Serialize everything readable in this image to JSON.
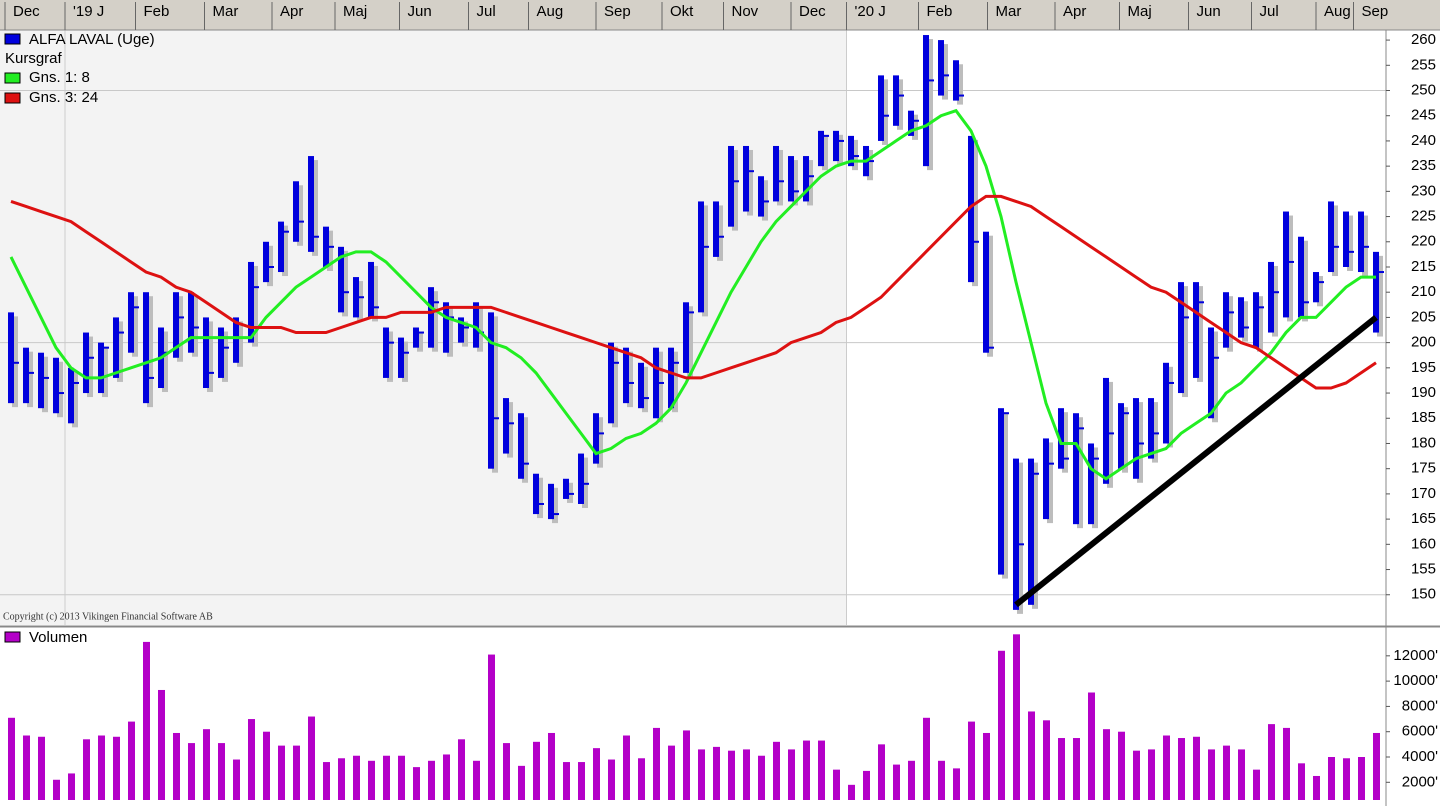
{
  "copyright": "Copyright (c) 2013 Vikingen Financial Software AB",
  "x_axis": {
    "labels": [
      "Dec",
      "'19 J",
      "Feb",
      "Mar",
      "Apr",
      "Maj",
      "Jun",
      "Jul",
      "Aug",
      "Sep",
      "Okt",
      "Nov",
      "Dec",
      "'20 J",
      "Feb",
      "Mar",
      "Apr",
      "Maj",
      "Jun",
      "Jul",
      "Aug",
      "Sep"
    ],
    "positions": [
      -0.4,
      3.6,
      8.3,
      12.9,
      17.4,
      21.6,
      25.9,
      30.5,
      34.5,
      39,
      43.4,
      47.5,
      52,
      55.7,
      60.5,
      65.1,
      69.6,
      73.9,
      78.5,
      82.7,
      87,
      89.5
    ]
  },
  "chart_data": [
    {
      "type": "ohlc",
      "name": "ALFA LAVAL (Uge)",
      "subtitle": "Kursgraf",
      "color": "#0000dd",
      "high": [
        206,
        199,
        198,
        197,
        195,
        202,
        200,
        205,
        210,
        210,
        203,
        210,
        210,
        205,
        203,
        205,
        216,
        220,
        224,
        232,
        237,
        223,
        219,
        213,
        216,
        203,
        201,
        203,
        211,
        208,
        205,
        208,
        206,
        189,
        186,
        174,
        172,
        173,
        178,
        186,
        200,
        199,
        196,
        199,
        199,
        208,
        228,
        228,
        239,
        239,
        233,
        239,
        237,
        237,
        242,
        242,
        241,
        239,
        253,
        253,
        246,
        261,
        260,
        256,
        241,
        222,
        187,
        177,
        177,
        181,
        187,
        186,
        180,
        193,
        188,
        189,
        189,
        196,
        212,
        212,
        203,
        210,
        209,
        210,
        216,
        226,
        221,
        214,
        228,
        226,
        226,
        218
      ],
      "low": [
        188,
        188,
        187,
        186,
        184,
        190,
        190,
        193,
        198,
        188,
        191,
        197,
        198,
        191,
        193,
        196,
        200,
        212,
        214,
        220,
        218,
        215,
        206,
        205,
        205,
        193,
        193,
        199,
        199,
        198,
        200,
        199,
        175,
        178,
        173,
        166,
        165,
        169,
        168,
        176,
        184,
        188,
        187,
        185,
        187,
        194,
        206,
        217,
        223,
        226,
        225,
        228,
        228,
        228,
        235,
        236,
        235,
        233,
        240,
        243,
        241,
        235,
        249,
        248,
        212,
        198,
        154,
        147,
        148,
        165,
        175,
        164,
        164,
        172,
        175,
        173,
        177,
        180,
        190,
        193,
        185,
        199,
        201,
        199,
        202,
        205,
        205,
        208,
        214,
        215,
        214,
        202
      ],
      "close": [
        196,
        194,
        193,
        190,
        192,
        197,
        199,
        202,
        207,
        193,
        198,
        205,
        203,
        194,
        199,
        201,
        211,
        215,
        222,
        224,
        221,
        219,
        210,
        209,
        207,
        200,
        198,
        202,
        208,
        205,
        203,
        202,
        185,
        184,
        176,
        168,
        166,
        170,
        172,
        182,
        196,
        192,
        189,
        192,
        196,
        206,
        219,
        221,
        232,
        234,
        228,
        232,
        230,
        233,
        241,
        240,
        237,
        236,
        245,
        249,
        244,
        252,
        253,
        249,
        220,
        199,
        186,
        160,
        174,
        176,
        177,
        183,
        177,
        182,
        186,
        180,
        182,
        192,
        205,
        208,
        197,
        206,
        203,
        207,
        210,
        216,
        208,
        212,
        219,
        218,
        219,
        214
      ],
      "series": [
        {
          "name": "Gns. 1: 8",
          "color": "#22ee22",
          "values": [
            217,
            211,
            205,
            199,
            195,
            193,
            193,
            194,
            195,
            196,
            197,
            199,
            201,
            201,
            201,
            201,
            201,
            205,
            208,
            211,
            213,
            215,
            217,
            218,
            218,
            216,
            213,
            210,
            207,
            205,
            204,
            203,
            200,
            199,
            197,
            194,
            190,
            186,
            182,
            178,
            179,
            181,
            182,
            184,
            187,
            192,
            198,
            204,
            210,
            215,
            220,
            224,
            227,
            230,
            233,
            235,
            236,
            236,
            238,
            240,
            242,
            243,
            245,
            246,
            242,
            235,
            225,
            212,
            200,
            188,
            180,
            180,
            175,
            173,
            175,
            177,
            178,
            179,
            182,
            184,
            186,
            190,
            192,
            195,
            198,
            202,
            205,
            205,
            208,
            211,
            213,
            213
          ]
        },
        {
          "name": "Gns. 3: 24",
          "color": "#dd1111",
          "values": [
            228,
            227,
            226,
            225,
            224,
            222,
            220,
            218,
            216,
            214,
            213,
            211,
            210,
            208,
            206,
            204,
            203,
            203,
            203,
            202,
            202,
            202,
            203,
            204,
            205,
            205,
            206,
            206,
            206,
            207,
            207,
            207,
            207,
            206,
            205,
            204,
            203,
            202,
            201,
            200,
            199,
            198,
            197,
            195,
            194,
            193,
            193,
            194,
            195,
            196,
            197,
            198,
            200,
            201,
            202,
            204,
            205,
            207,
            209,
            212,
            215,
            218,
            221,
            224,
            227,
            229,
            229,
            228,
            227,
            225,
            223,
            221,
            219,
            217,
            215,
            213,
            211,
            210,
            208,
            206,
            204,
            202,
            200,
            199,
            197,
            195,
            193,
            191,
            191,
            192,
            194,
            196
          ]
        }
      ],
      "trendline": {
        "color": "#000000",
        "from_index": 67,
        "to_index": 91,
        "values": [
          148,
          205
        ]
      },
      "ylim": [
        144,
        262
      ],
      "yticks": [
        150,
        155,
        160,
        165,
        170,
        175,
        180,
        185,
        190,
        195,
        200,
        205,
        210,
        215,
        220,
        225,
        230,
        235,
        240,
        245,
        250,
        255,
        260
      ],
      "grid_values": [
        150,
        200,
        250
      ]
    },
    {
      "type": "bar",
      "name": "Volumen",
      "color": "#b400c8",
      "values": [
        7100,
        5700,
        5600,
        2200,
        2700,
        5400,
        5700,
        5600,
        6800,
        13100,
        9300,
        5900,
        5100,
        6200,
        5100,
        3800,
        7000,
        6000,
        4900,
        4900,
        7200,
        3600,
        3900,
        4100,
        3700,
        4100,
        4100,
        3200,
        3700,
        4200,
        5400,
        3700,
        12100,
        5100,
        3300,
        5200,
        5900,
        3600,
        3600,
        4700,
        3800,
        5700,
        3900,
        6300,
        4900,
        6100,
        4600,
        4800,
        4500,
        4600,
        4100,
        5200,
        4600,
        5300,
        5300,
        3000,
        1800,
        2900,
        5000,
        3400,
        3700,
        7100,
        3700,
        3100,
        6800,
        5900,
        12400,
        13700,
        7600,
        6900,
        5500,
        5500,
        9100,
        6200,
        6000,
        4500,
        4600,
        5700,
        5500,
        5600,
        4600,
        4900,
        4600,
        3000,
        6600,
        6300,
        3500,
        2500,
        4000,
        3900,
        4000,
        5900
      ],
      "ylim": [
        600,
        14200
      ],
      "yticks": [
        {
          "value": 2000,
          "label": "2000'"
        },
        {
          "value": 4000,
          "label": "4000'"
        },
        {
          "value": 6000,
          "label": "6000'"
        },
        {
          "value": 8000,
          "label": "8000'"
        },
        {
          "value": 10000,
          "label": "10000'"
        },
        {
          "value": 12000,
          "label": "12000'"
        }
      ]
    }
  ]
}
